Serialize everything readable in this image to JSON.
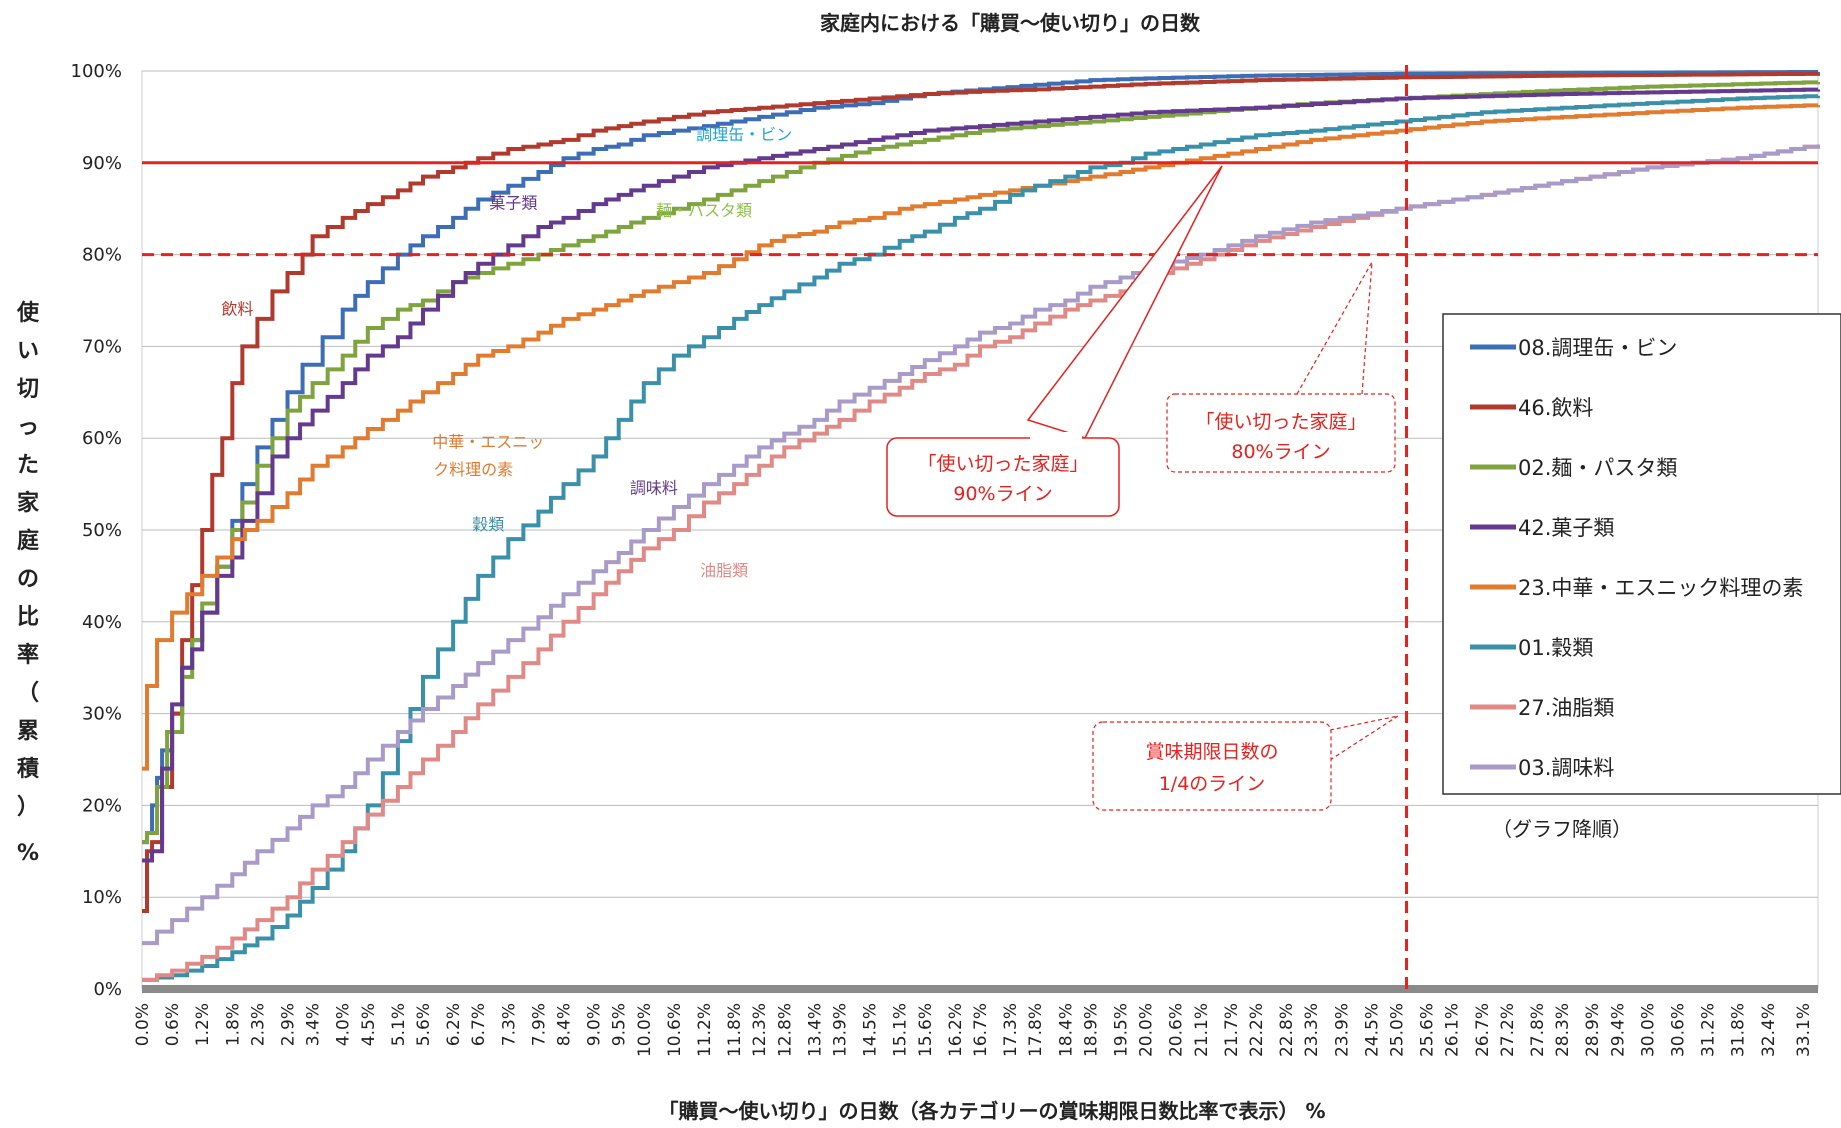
{
  "chart_data": {
    "type": "line",
    "title": "家庭内における「購買～使い切り」の日数",
    "xlabel": "「購買～使い切り」の日数（各カテゴリーの賞味期限日数比率で表示） %",
    "ylabel": "使い切った家庭の比率（累積）%",
    "ylim": [
      0,
      100
    ],
    "xlim": [
      0,
      33.4
    ],
    "y_ticks": [
      "0%",
      "10%",
      "20%",
      "30%",
      "40%",
      "50%",
      "60%",
      "70%",
      "80%",
      "90%",
      "100%"
    ],
    "x_ticks": [
      "0.0%",
      "0.6%",
      "1.2%",
      "1.8%",
      "2.3%",
      "2.9%",
      "3.4%",
      "4.0%",
      "4.5%",
      "5.1%",
      "5.6%",
      "6.2%",
      "6.7%",
      "7.3%",
      "7.9%",
      "8.4%",
      "9.0%",
      "9.5%",
      "10.0%",
      "10.6%",
      "11.2%",
      "11.8%",
      "12.3%",
      "12.8%",
      "13.4%",
      "13.9%",
      "14.5%",
      "15.1%",
      "15.6%",
      "16.2%",
      "16.7%",
      "17.3%",
      "17.8%",
      "18.4%",
      "18.9%",
      "19.5%",
      "20.0%",
      "20.6%",
      "21.1%",
      "21.7%",
      "22.2%",
      "22.8%",
      "23.3%",
      "23.9%",
      "24.5%",
      "25.0%",
      "25.6%",
      "26.1%",
      "26.7%",
      "27.2%",
      "27.8%",
      "28.3%",
      "28.9%",
      "29.4%",
      "30.0%",
      "30.6%",
      "31.2%",
      "31.8%",
      "32.4%",
      "33.1%"
    ],
    "grid": true,
    "legend_position": "right",
    "legend_note": "（グラフ降順）",
    "series": [
      {
        "name": "08.調理缶・ビン",
        "color": "#3d6eb5",
        "x": [
          0,
          0.1,
          0.2,
          0.3,
          0.4,
          0.6,
          0.8,
          1.0,
          1.2,
          1.5,
          1.8,
          2.0,
          2.3,
          2.6,
          2.9,
          3.2,
          3.6,
          4.0,
          4.5,
          5.1,
          5.6,
          6.2,
          6.7,
          7.3,
          7.9,
          8.4,
          9.0,
          9.5,
          10.0,
          10.6,
          11.2,
          12.3,
          13.4,
          14.5,
          15.6,
          16.7,
          17.8,
          18.9,
          20.0,
          22.2,
          25.0,
          28.3,
          33.4
        ],
        "values": [
          16,
          17,
          20,
          23,
          26,
          30,
          35,
          38,
          41,
          46,
          51,
          55,
          59,
          62,
          65,
          68,
          71,
          74,
          77,
          80,
          82,
          84,
          86,
          87.5,
          89,
          90.5,
          91.5,
          92,
          93,
          93.5,
          94,
          95,
          96,
          96.5,
          97.5,
          98,
          98.5,
          99,
          99.2,
          99.5,
          99.7,
          99.8,
          99.9
        ]
      },
      {
        "name": "46.飲料",
        "color": "#b03a2e",
        "x": [
          0,
          0.1,
          0.2,
          0.4,
          0.6,
          0.8,
          1.0,
          1.2,
          1.4,
          1.6,
          1.8,
          2.0,
          2.3,
          2.6,
          2.9,
          3.2,
          3.4,
          3.7,
          4.0,
          4.5,
          5.1,
          5.6,
          6.2,
          6.7,
          7.3,
          7.9,
          8.4,
          9.0,
          9.5,
          10.0,
          10.6,
          11.2,
          12.3,
          13.4,
          14.5,
          15.6,
          16.7,
          17.8,
          18.9,
          20.0,
          22.2,
          25.0,
          28.3,
          33.4
        ],
        "values": [
          8.5,
          15,
          16,
          22,
          30,
          38,
          44,
          50,
          56,
          60,
          66,
          70,
          73,
          76,
          78,
          80,
          82,
          83,
          84,
          85.5,
          87,
          88.5,
          89.5,
          90.5,
          91.5,
          92,
          92.5,
          93.5,
          94,
          94.5,
          95,
          95.5,
          96,
          96.5,
          97,
          97.5,
          97.8,
          98,
          98.3,
          98.6,
          99,
          99.3,
          99.5,
          99.7
        ]
      },
      {
        "name": "02.麺・パスタ類",
        "color": "#7ea33f",
        "x": [
          0,
          0.1,
          0.3,
          0.5,
          0.8,
          1.0,
          1.2,
          1.5,
          1.8,
          2.0,
          2.3,
          2.6,
          2.9,
          3.4,
          4.0,
          4.5,
          5.1,
          5.6,
          6.2,
          6.7,
          7.3,
          7.9,
          8.4,
          9.0,
          9.5,
          10.0,
          10.6,
          11.2,
          12.3,
          13.4,
          14.5,
          15.6,
          16.7,
          17.8,
          18.9,
          20.0,
          21.1,
          22.2,
          23.3,
          25.0,
          27.8,
          30.0,
          33.4
        ],
        "values": [
          16,
          17,
          22,
          28,
          34,
          38,
          42,
          46,
          50,
          53,
          57,
          60,
          63,
          66,
          69,
          72,
          74,
          75,
          77,
          78,
          79,
          80,
          81,
          82,
          83,
          84,
          85,
          86,
          88,
          90,
          91.5,
          92.5,
          93.5,
          94,
          94.5,
          95,
          95.5,
          96,
          96.5,
          97,
          97.8,
          98.3,
          98.8
        ]
      },
      {
        "name": "42.菓子類",
        "color": "#633a8e",
        "x": [
          0,
          0.2,
          0.4,
          0.6,
          0.8,
          1.0,
          1.2,
          1.5,
          1.8,
          2.0,
          2.3,
          2.6,
          2.9,
          3.4,
          4.0,
          4.5,
          5.1,
          5.6,
          6.2,
          6.7,
          7.3,
          7.9,
          8.4,
          9.0,
          9.5,
          10.0,
          10.6,
          11.2,
          12.3,
          13.4,
          14.5,
          15.6,
          16.7,
          17.8,
          18.9,
          20.0,
          22.2,
          25.0,
          28.3,
          33.4
        ],
        "values": [
          14,
          15,
          24,
          31,
          35,
          37,
          41,
          45,
          47,
          51,
          54,
          58,
          60,
          63,
          66,
          69,
          71,
          74,
          77,
          79,
          81,
          83,
          84,
          85.5,
          86.5,
          87.5,
          88.5,
          89.5,
          90.5,
          91.5,
          92.5,
          93.5,
          94,
          94.5,
          95,
          95.5,
          96,
          97,
          97.5,
          98
        ]
      },
      {
        "name": "23.中華・エスニック料理の素",
        "color": "#e07b2f",
        "x": [
          0,
          0.1,
          0.3,
          0.6,
          0.9,
          1.2,
          1.5,
          1.8,
          2.3,
          2.9,
          3.4,
          4.0,
          4.5,
          5.1,
          5.6,
          6.2,
          6.7,
          7.3,
          7.9,
          8.4,
          9.0,
          9.5,
          10.0,
          10.6,
          11.2,
          11.8,
          12.3,
          12.8,
          13.4,
          13.9,
          14.5,
          15.1,
          15.6,
          16.2,
          16.7,
          17.3,
          17.8,
          18.4,
          18.9,
          19.5,
          20.0,
          21.1,
          22.2,
          23.3,
          25.0,
          26.7,
          28.3,
          30.0,
          31.8,
          33.4
        ],
        "values": [
          24,
          33,
          38,
          41,
          43,
          45,
          47,
          49,
          51,
          54,
          57,
          59,
          61,
          63,
          65,
          67,
          69,
          70,
          71.5,
          73,
          74,
          75,
          76,
          77,
          78,
          79.5,
          81,
          82,
          82.5,
          83.5,
          84,
          85,
          85.5,
          86,
          86.5,
          87,
          87.5,
          88,
          88.5,
          89,
          89.5,
          90.5,
          91.5,
          92.5,
          93.5,
          94.5,
          95,
          95.5,
          96,
          96.3
        ]
      },
      {
        "name": "01.穀類",
        "color": "#3a90a8",
        "x": [
          0,
          0.6,
          1.2,
          1.8,
          2.3,
          2.9,
          3.4,
          4.0,
          4.5,
          5.1,
          5.6,
          6.2,
          6.7,
          7.3,
          7.9,
          8.4,
          9.0,
          9.5,
          10.0,
          10.6,
          11.2,
          11.8,
          12.3,
          12.8,
          13.4,
          13.9,
          14.5,
          15.1,
          15.6,
          16.2,
          16.7,
          17.3,
          17.8,
          18.4,
          18.9,
          19.5,
          20.0,
          21.1,
          22.2,
          23.3,
          25.0,
          26.7,
          28.3,
          30.0,
          31.8,
          33.4
        ],
        "values": [
          1,
          1.5,
          2.5,
          4,
          5.5,
          8,
          11,
          15,
          20,
          27,
          34,
          40,
          45,
          49,
          52,
          55,
          58,
          62,
          66,
          69,
          71,
          73,
          74.5,
          76,
          77.5,
          79,
          80,
          81.5,
          82.5,
          84,
          85,
          86.5,
          87.5,
          88.5,
          89.5,
          90,
          91,
          92,
          93,
          93.5,
          94.5,
          95.5,
          96,
          96.5,
          97,
          97.3
        ]
      },
      {
        "name": "27.油脂類",
        "color": "#e08a87",
        "x": [
          0,
          0.6,
          1.2,
          1.8,
          2.3,
          2.9,
          3.4,
          4.0,
          4.5,
          5.1,
          5.6,
          6.2,
          6.7,
          7.3,
          7.9,
          8.4,
          9.0,
          9.5,
          10.0,
          10.6,
          11.2,
          11.8,
          12.3,
          12.8,
          13.4,
          13.9,
          14.5,
          15.1,
          15.6,
          16.2,
          16.7,
          17.3,
          17.8,
          18.4,
          18.9,
          19.5,
          20.0,
          21.1,
          22.2,
          23.3,
          25.0,
          26.7,
          28.3,
          30.0,
          31.8,
          33.4
        ],
        "values": [
          1,
          2,
          3.5,
          5.5,
          7.5,
          10,
          13,
          16,
          19,
          22,
          25,
          28,
          31,
          34,
          37,
          40,
          43,
          45.5,
          48,
          50,
          53,
          55,
          57,
          59,
          60.5,
          62,
          64,
          65.5,
          67,
          68,
          70,
          71,
          72.5,
          74,
          75,
          76,
          77.5,
          79.5,
          81.5,
          83,
          85,
          86.5,
          88,
          89.5,
          90.5,
          92
        ]
      },
      {
        "name": "03.調味料",
        "color": "#a89bc8",
        "x": [
          0,
          0.6,
          1.2,
          1.8,
          2.3,
          2.9,
          3.4,
          4.0,
          4.5,
          5.1,
          5.6,
          6.2,
          6.7,
          7.3,
          7.9,
          8.4,
          9.0,
          9.5,
          10.0,
          10.6,
          11.2,
          11.8,
          12.3,
          12.8,
          13.4,
          13.9,
          14.5,
          15.1,
          15.6,
          16.2,
          16.7,
          17.3,
          17.8,
          18.4,
          18.9,
          19.5,
          20.0,
          21.1,
          22.2,
          23.3,
          25.0,
          26.7,
          28.3,
          30.0,
          31.8,
          33.4
        ],
        "values": [
          5,
          7.5,
          10,
          12.5,
          15,
          17.5,
          20,
          22,
          25,
          28,
          30.5,
          33,
          35.5,
          38,
          40.5,
          43,
          45.5,
          47.5,
          50,
          52.5,
          55,
          57,
          59,
          60.5,
          62,
          64,
          65.5,
          67,
          68.5,
          70,
          71.5,
          72.5,
          74,
          75,
          76.5,
          77.5,
          78.5,
          80,
          82,
          83.5,
          85,
          86.5,
          88,
          89.5,
          90.5,
          92
        ]
      }
    ],
    "reference_lines": [
      {
        "axis": "y",
        "value": 90,
        "style": "solid",
        "color": "#e8201e"
      },
      {
        "axis": "y",
        "value": 80,
        "style": "dashed",
        "color": "#e8201e"
      },
      {
        "axis": "x",
        "value": 25.2,
        "style": "dashed",
        "color": "#e8201e"
      }
    ],
    "series_labels": [
      {
        "text": "調理缶・ビン",
        "series": 0,
        "x": 12.0,
        "y": 92.5,
        "color": "#1fa3d8"
      },
      {
        "text": "飲料",
        "series": 1,
        "x": 1.9,
        "y": 73.5,
        "color": "#b03a2e"
      },
      {
        "text": "麺・パスタ類",
        "series": 2,
        "x": 11.2,
        "y": 84.2,
        "color": "#8fc14a"
      },
      {
        "text": "菓子類",
        "series": 3,
        "x": 7.4,
        "y": 85.0,
        "color": "#633a8e"
      },
      {
        "text": "中華・エスニッ",
        "series": 4,
        "x": 6.9,
        "y": 59.0,
        "color": "#e07b2f"
      },
      {
        "text": "ク料理の素",
        "series": 4,
        "x": 6.6,
        "y": 56.0,
        "color": "#e07b2f"
      },
      {
        "text": "穀類",
        "series": 5,
        "x": 6.9,
        "y": 50.0,
        "color": "#3a90a8"
      },
      {
        "text": "調味料",
        "series": 7,
        "x": 10.2,
        "y": 54.0,
        "color": "#633a8e"
      },
      {
        "text": "油脂類",
        "series": 6,
        "x": 11.6,
        "y": 45.0,
        "color": "#e08a87"
      }
    ],
    "callouts": [
      {
        "lines": [
          "「使い切った家庭」",
          "90%ライン"
        ],
        "style": "solid"
      },
      {
        "lines": [
          "「使い切った家庭」",
          "80%ライン"
        ],
        "style": "dashed"
      },
      {
        "lines": [
          "賞味期限日数の",
          "1/4のライン"
        ],
        "style": "dashed"
      }
    ]
  }
}
